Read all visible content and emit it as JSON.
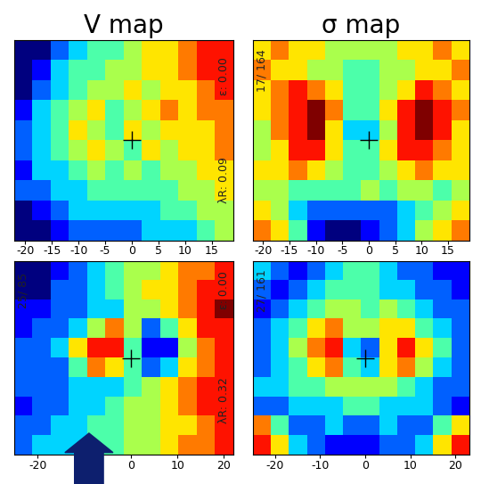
{
  "chart_data": [
    {
      "type": "heatmap",
      "title": "V map",
      "xlim": [
        -22,
        19
      ],
      "xticks": [
        -20,
        -15,
        -10,
        -5,
        0,
        5,
        10,
        15
      ],
      "ylim": [
        -18,
        18
      ],
      "tick_labels": "x",
      "center": [
        0,
        0
      ],
      "annotations": [
        "λR: 0.09",
        "ε: 0.00"
      ],
      "clim": [
        0,
        9
      ],
      "cells": [
        [
          0,
          0,
          2,
          3,
          4,
          4,
          5,
          6,
          6,
          7,
          8,
          8
        ],
        [
          0,
          1,
          3,
          4,
          4,
          5,
          5,
          6,
          6,
          7,
          8,
          8
        ],
        [
          0,
          2,
          3,
          4,
          5,
          5,
          6,
          5,
          6,
          6,
          7,
          8
        ],
        [
          1,
          3,
          4,
          5,
          6,
          4,
          5,
          6,
          7,
          6,
          7,
          7
        ],
        [
          2,
          3,
          4,
          6,
          5,
          4,
          6,
          5,
          6,
          6,
          6,
          7
        ],
        [
          2,
          3,
          4,
          5,
          6,
          5,
          4,
          6,
          5,
          6,
          6,
          7
        ],
        [
          1,
          3,
          3,
          4,
          5,
          4,
          5,
          4,
          5,
          5,
          6,
          6
        ],
        [
          2,
          2,
          3,
          3,
          4,
          4,
          4,
          4,
          4,
          5,
          5,
          6
        ],
        [
          0,
          1,
          2,
          3,
          3,
          3,
          3,
          3,
          4,
          4,
          5,
          5
        ],
        [
          0,
          0,
          1,
          2,
          2,
          2,
          2,
          3,
          3,
          3,
          4,
          5
        ]
      ]
    },
    {
      "type": "heatmap",
      "title": "σ map",
      "xlim": [
        -22,
        19
      ],
      "xticks": [
        -20,
        -15,
        -10,
        -5,
        0,
        5,
        10,
        15
      ],
      "ylim": [
        -18,
        18
      ],
      "tick_labels": "x",
      "center": [
        0,
        0
      ],
      "annotations": [
        "17/ 164"
      ],
      "clim": [
        0,
        9
      ],
      "cells": [
        [
          6,
          7,
          6,
          6,
          5,
          5,
          5,
          5,
          6,
          6,
          7,
          6
        ],
        [
          7,
          6,
          6,
          5,
          5,
          4,
          4,
          5,
          5,
          6,
          6,
          7
        ],
        [
          6,
          7,
          8,
          7,
          6,
          4,
          4,
          5,
          6,
          8,
          7,
          6
        ],
        [
          6,
          7,
          8,
          9,
          7,
          4,
          4,
          6,
          8,
          9,
          8,
          7
        ],
        [
          5,
          7,
          8,
          9,
          6,
          3,
          3,
          5,
          8,
          9,
          8,
          6
        ],
        [
          5,
          6,
          8,
          8,
          6,
          4,
          4,
          6,
          8,
          8,
          7,
          6
        ],
        [
          6,
          6,
          7,
          6,
          5,
          4,
          4,
          5,
          6,
          7,
          6,
          6
        ],
        [
          5,
          5,
          4,
          4,
          4,
          4,
          5,
          4,
          5,
          5,
          4,
          5
        ],
        [
          6,
          5,
          3,
          2,
          2,
          2,
          2,
          2,
          3,
          4,
          5,
          6
        ],
        [
          7,
          6,
          4,
          1,
          0,
          0,
          1,
          2,
          3,
          5,
          6,
          7
        ]
      ]
    },
    {
      "type": "heatmap",
      "xlim": [
        -25,
        22
      ],
      "xticks": [
        -20,
        0,
        10,
        20
      ],
      "ylim": [
        -20,
        20
      ],
      "tick_labels": "x",
      "center": [
        0,
        0
      ],
      "annotations": [
        "λR: 0.32",
        "ε: 0.00",
        "25/ 85"
      ],
      "clim": [
        0,
        9
      ],
      "cells": [
        [
          0,
          0,
          1,
          2,
          3,
          4,
          5,
          5,
          6,
          7,
          7,
          8
        ],
        [
          0,
          0,
          2,
          2,
          3,
          4,
          5,
          6,
          6,
          7,
          8,
          8
        ],
        [
          1,
          1,
          2,
          2,
          3,
          3,
          5,
          5,
          6,
          7,
          8,
          9
        ],
        [
          1,
          2,
          2,
          3,
          5,
          7,
          5,
          2,
          4,
          6,
          8,
          8
        ],
        [
          2,
          2,
          3,
          6,
          8,
          8,
          4,
          1,
          1,
          5,
          7,
          8
        ],
        [
          2,
          2,
          2,
          4,
          7,
          6,
          4,
          2,
          3,
          6,
          7,
          8
        ],
        [
          2,
          2,
          2,
          3,
          3,
          3,
          4,
          5,
          6,
          7,
          8,
          8
        ],
        [
          1,
          2,
          2,
          3,
          3,
          4,
          5,
          5,
          6,
          7,
          8,
          8
        ],
        [
          2,
          2,
          3,
          3,
          4,
          4,
          5,
          5,
          6,
          6,
          7,
          8
        ],
        [
          2,
          3,
          3,
          3,
          4,
          4,
          5,
          5,
          6,
          7,
          7,
          8
        ]
      ]
    },
    {
      "type": "heatmap",
      "xlim": [
        -25,
        23
      ],
      "xticks": [
        -20,
        -10,
        0,
        10,
        20
      ],
      "ylim": [
        -20,
        20
      ],
      "tick_labels": "x",
      "center": [
        0,
        0
      ],
      "annotations": [
        "27/ 161"
      ],
      "clim": [
        0,
        9
      ],
      "cells": [
        [
          3,
          2,
          1,
          2,
          3,
          4,
          4,
          3,
          2,
          2,
          1,
          1
        ],
        [
          2,
          1,
          2,
          3,
          4,
          4,
          4,
          3,
          3,
          2,
          2,
          1
        ],
        [
          1,
          2,
          3,
          4,
          5,
          5,
          4,
          5,
          4,
          3,
          2,
          2
        ],
        [
          2,
          3,
          4,
          6,
          7,
          5,
          5,
          6,
          6,
          4,
          3,
          2
        ],
        [
          2,
          3,
          5,
          7,
          8,
          3,
          2,
          6,
          8,
          6,
          4,
          2
        ],
        [
          2,
          3,
          4,
          6,
          7,
          4,
          3,
          6,
          7,
          5,
          3,
          2
        ],
        [
          3,
          3,
          4,
          4,
          5,
          5,
          5,
          5,
          4,
          3,
          2,
          2
        ],
        [
          2,
          2,
          3,
          3,
          3,
          4,
          4,
          3,
          3,
          3,
          2,
          1
        ],
        [
          7,
          4,
          2,
          2,
          3,
          2,
          2,
          3,
          2,
          2,
          4,
          6
        ],
        [
          8,
          6,
          3,
          2,
          1,
          1,
          1,
          2,
          2,
          3,
          6,
          8
        ]
      ]
    }
  ]
}
